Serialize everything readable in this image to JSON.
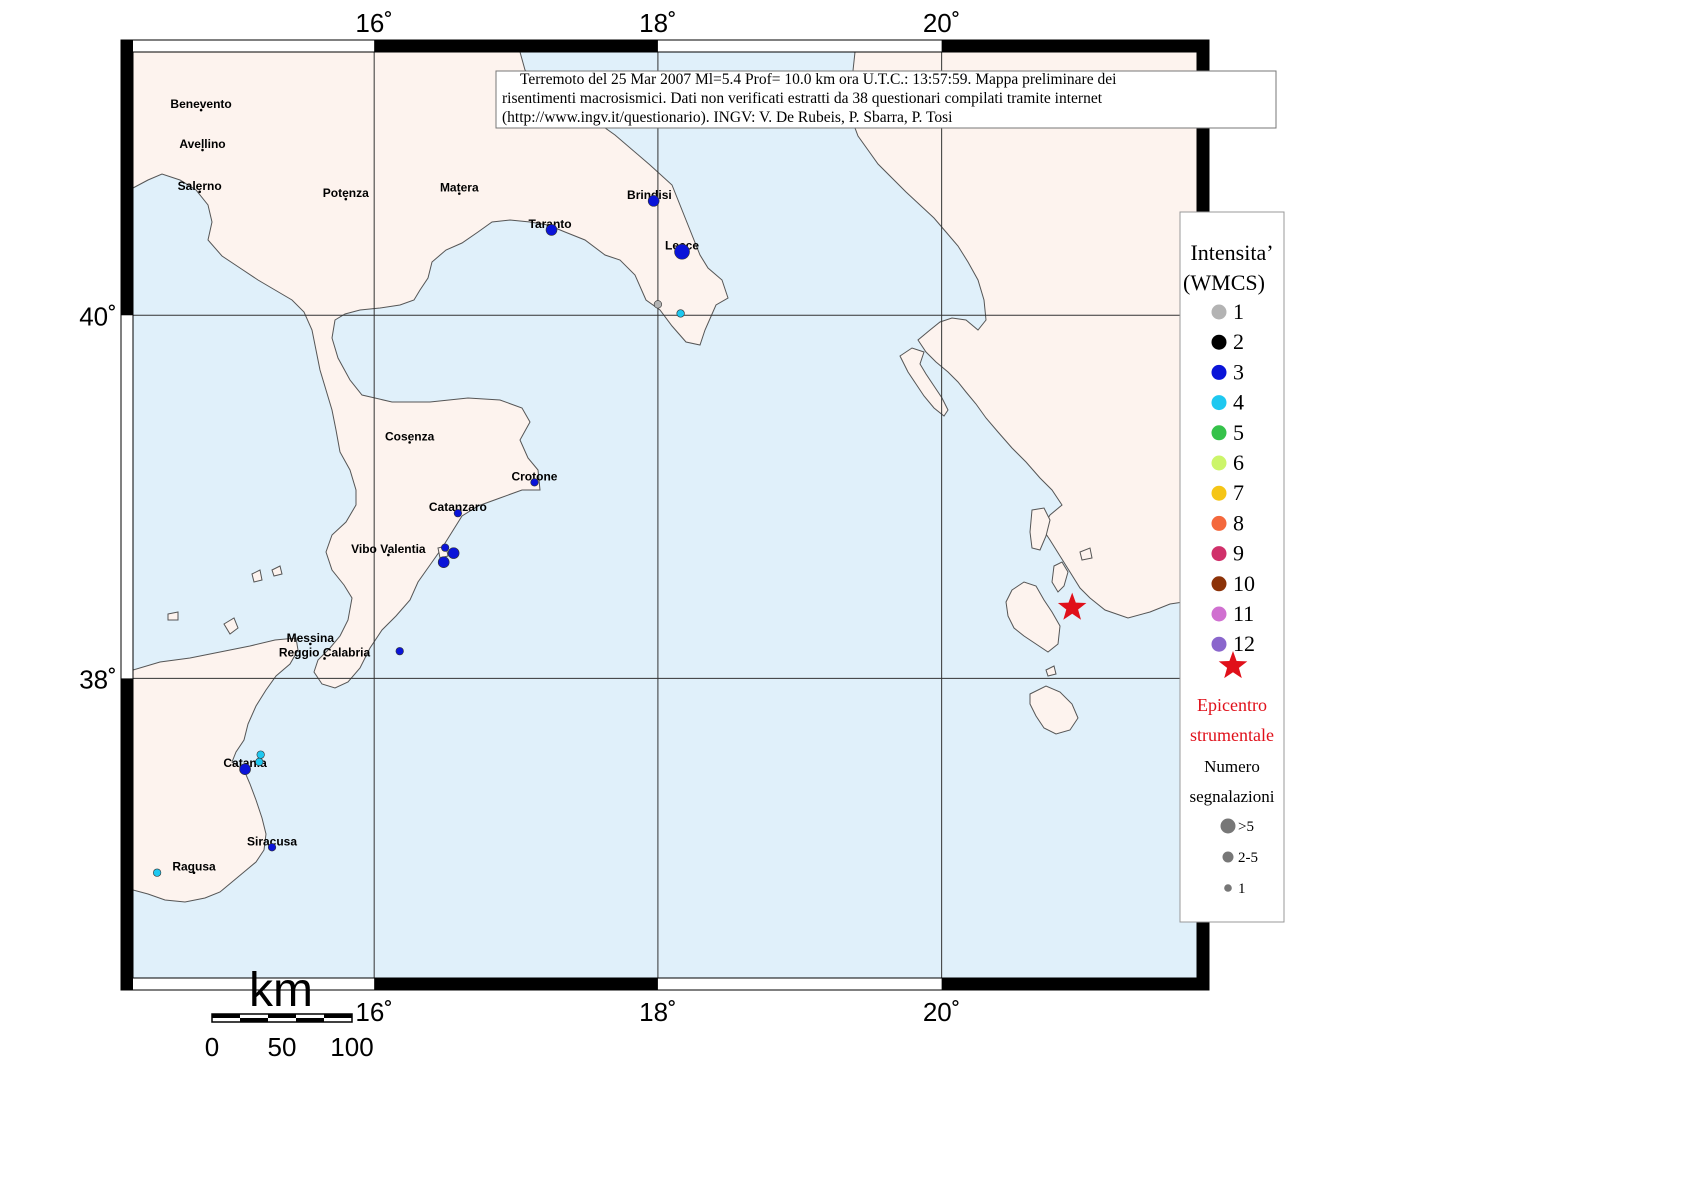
{
  "title_lines": [
    "Terremoto del 25 Mar 2007 Ml=5.4 Prof= 10.0 km ora U.T.C.: 13:57:59.  Mappa preliminare dei",
    "risentimenti macrosismici.   Dati non verificati estratti da 38 questionari compilati tramite internet",
    "(http://www.ingv.it/questionario).   INGV: V.  De Rubeis, P.  Sbarra, P.  Tosi"
  ],
  "axes": {
    "lon_ticks": [
      {
        "value": 16,
        "label": "16˚"
      },
      {
        "value": 18,
        "label": "18˚"
      },
      {
        "value": 20,
        "label": "20˚"
      }
    ],
    "lat_ticks": [
      {
        "value": 40,
        "label": "40˚"
      },
      {
        "value": 38,
        "label": "38˚"
      }
    ],
    "lon_range": [
      14.3,
      21.8
    ],
    "lat_range": [
      36.35,
      41.45
    ]
  },
  "colors": {
    "sea": "#e0f0fa",
    "land": "#fdf3ee",
    "coast": "#555555",
    "grid": "#333333",
    "epicenter": "#e0101a",
    "intensity": {
      "1": "#b3b3b3",
      "2": "#000000",
      "3": "#0a14d8",
      "4": "#1ec8f0",
      "5": "#35c24a",
      "6": "#ccf56a",
      "7": "#f5c516",
      "8": "#f4683c",
      "9": "#d0306a",
      "10": "#8c3208",
      "11": "#d070d0",
      "12": "#8a66cc"
    }
  },
  "cities": [
    {
      "name": "Benevento",
      "lon": 14.78,
      "lat": 41.13
    },
    {
      "name": "Avellino",
      "lon": 14.79,
      "lat": 40.91
    },
    {
      "name": "Salerno",
      "lon": 14.77,
      "lat": 40.68
    },
    {
      "name": "Potenza",
      "lon": 15.8,
      "lat": 40.64
    },
    {
      "name": "Matera",
      "lon": 16.6,
      "lat": 40.67
    },
    {
      "name": "Brindisi",
      "lon": 17.94,
      "lat": 40.63
    },
    {
      "name": "Taranto",
      "lon": 17.24,
      "lat": 40.47
    },
    {
      "name": "Lecce",
      "lon": 18.17,
      "lat": 40.35
    },
    {
      "name": "Cosenza",
      "lon": 16.25,
      "lat": 39.3
    },
    {
      "name": "Crotone",
      "lon": 17.13,
      "lat": 39.08
    },
    {
      "name": "Catanzaro",
      "lon": 16.59,
      "lat": 38.91
    },
    {
      "name": "Vibo Valentia",
      "lon": 16.1,
      "lat": 38.68
    },
    {
      "name": "Messina",
      "lon": 15.55,
      "lat": 38.19
    },
    {
      "name": "Reggio Calabria",
      "lon": 15.65,
      "lat": 38.11
    },
    {
      "name": "Catania",
      "lon": 15.09,
      "lat": 37.5
    },
    {
      "name": "Siracusa",
      "lon": 15.28,
      "lat": 37.07
    },
    {
      "name": "Ragusa",
      "lon": 14.73,
      "lat": 36.93
    }
  ],
  "observations": [
    {
      "lon": 17.97,
      "lat": 40.63,
      "intensity": 3,
      "count": "2-5"
    },
    {
      "lon": 17.25,
      "lat": 40.47,
      "intensity": 3,
      "count": "2-5"
    },
    {
      "lon": 18.17,
      "lat": 40.35,
      "intensity": 3,
      "count": ">5"
    },
    {
      "lon": 18.0,
      "lat": 40.06,
      "intensity": 1,
      "count": "1"
    },
    {
      "lon": 18.16,
      "lat": 40.01,
      "intensity": 4,
      "count": "1"
    },
    {
      "lon": 17.13,
      "lat": 39.08,
      "intensity": 3,
      "count": "1"
    },
    {
      "lon": 16.59,
      "lat": 38.91,
      "intensity": 3,
      "count": "1"
    },
    {
      "lon": 16.5,
      "lat": 38.72,
      "intensity": 3,
      "count": "1"
    },
    {
      "lon": 16.56,
      "lat": 38.69,
      "intensity": 3,
      "count": "2-5"
    },
    {
      "lon": 16.49,
      "lat": 38.64,
      "intensity": 3,
      "count": "2-5"
    },
    {
      "lon": 16.18,
      "lat": 38.15,
      "intensity": 3,
      "count": "1"
    },
    {
      "lon": 15.2,
      "lat": 37.58,
      "intensity": 4,
      "count": "1"
    },
    {
      "lon": 15.19,
      "lat": 37.54,
      "intensity": 4,
      "count": "1"
    },
    {
      "lon": 15.09,
      "lat": 37.5,
      "intensity": 3,
      "count": "2-5"
    },
    {
      "lon": 15.28,
      "lat": 37.07,
      "intensity": 3,
      "count": "1"
    },
    {
      "lon": 14.47,
      "lat": 36.93,
      "intensity": 4,
      "count": "1"
    }
  ],
  "epicenter": {
    "lon": 20.92,
    "lat": 38.39
  },
  "legend": {
    "title_line1": "Intensita’",
    "title_line2": "(WMCS)",
    "levels": [
      "1",
      "2",
      "3",
      "4",
      "5",
      "6",
      "7",
      "8",
      "9",
      "10",
      "11",
      "12"
    ],
    "epicenter_line1": "Epicentro",
    "epicenter_line2": "strumentale",
    "count_title_line1": "Numero",
    "count_title_line2": "segnalazioni",
    "count_sizes": [
      {
        "label": ">5",
        "size": "large"
      },
      {
        "label": "2-5",
        "size": "medium"
      },
      {
        "label": "1",
        "size": "small"
      }
    ]
  },
  "scale_bar": {
    "unit": "km",
    "labels": [
      "0",
      "50",
      "100"
    ]
  }
}
